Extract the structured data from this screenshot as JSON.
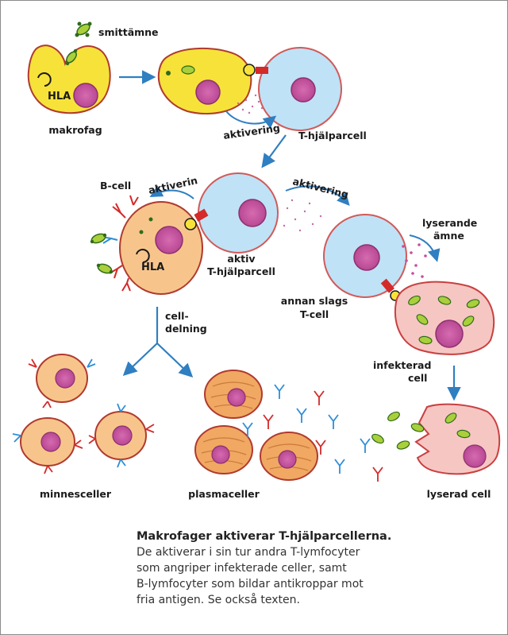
{
  "labels": {
    "smittamne": "smittämne",
    "hla_top": "HLA",
    "makrofag": "makrofag",
    "aktivering_top": "aktivering",
    "t_hjalparcell_top": "T-hjälparcell",
    "b_cell": "B-cell",
    "aktiverin": "aktiverin",
    "hla_bcell": "HLA",
    "aktivering_mid": "aktivering",
    "aktiv": "aktiv",
    "t_hjalparcell_mid": "T-hjälparcell",
    "lyserande": "lyserande",
    "amne": "ämne",
    "cell": "cell-",
    "delning": "delning",
    "annan_slags": "annan slags",
    "t_cell": "T-cell",
    "infekterad": "infekterad",
    "cell_word": "cell",
    "minnesceller": "minnesceller",
    "plasmaceller": "plasmaceller",
    "lyserad_cell": "lyserad cell"
  },
  "caption": {
    "title": "Makrofager aktiverar T-hjälparcellerna.",
    "lines": [
      "De aktiverar i sin tur andra T-lymfocyter",
      "som angriper infekterade celler, samt",
      "B-lymfocyter som bildar antikroppar mot",
      "fria antigen. Se också texten."
    ]
  },
  "colors": {
    "macrophage": "#f7e23a",
    "t_cell": "#bfe2f6",
    "b_cell": "#f7c58c",
    "plasma": "#f0a863",
    "infected": "#f6c6c3",
    "nucleus": "#c64f9c",
    "arrow": "#2f7fc1",
    "antibody_red": "#d42a2a",
    "antibody_blue": "#2f8ed6",
    "antigen_green": "#a9cf3b"
  }
}
